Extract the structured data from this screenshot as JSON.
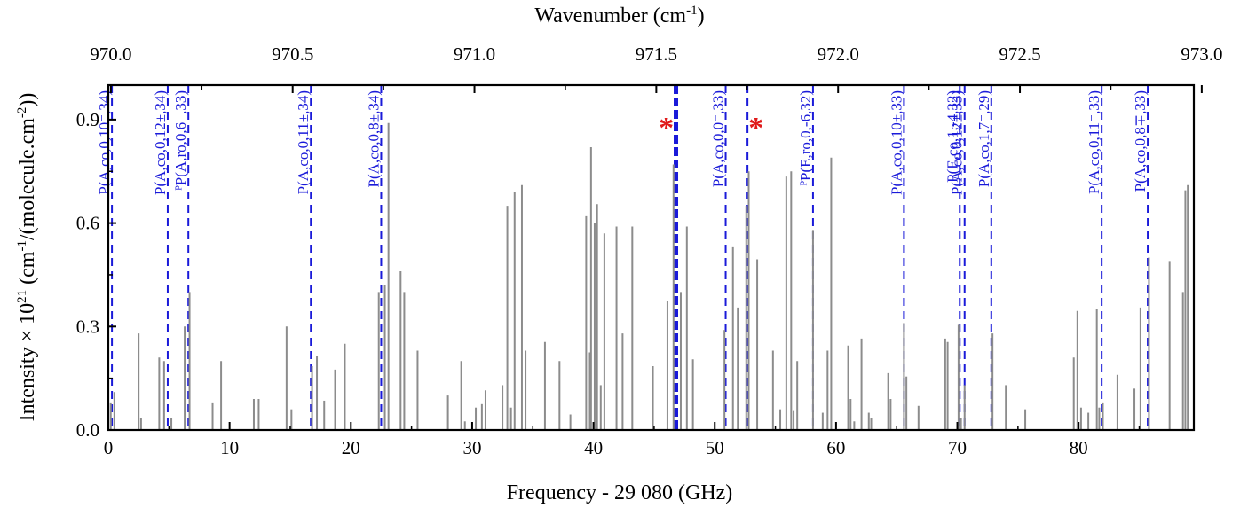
{
  "chart_data": {
    "type": "bar",
    "xlabel": "Frequency - 29 080 (GHz)",
    "ylabel": "Intensity × 10^21 (cm^-1/(molecule.cm^-2))",
    "top_xlabel": "Wavenumber (cm^-1)",
    "xlim": [
      0,
      89.5
    ],
    "ylim": [
      0,
      1.0
    ],
    "x_ticks": [
      0,
      10,
      20,
      30,
      40,
      50,
      60,
      70,
      80
    ],
    "x_tick_labels": [
      "0",
      "10",
      "20",
      "30",
      "40",
      "50",
      "60",
      "70",
      "80"
    ],
    "y_ticks": [
      0.0,
      0.3,
      0.6,
      0.9
    ],
    "y_tick_labels": [
      "0.0",
      "0.3",
      "0.6",
      "0.9"
    ],
    "top_ticks_cm": [
      970.0,
      970.5,
      971.0,
      971.5,
      972.0,
      972.5,
      973.0
    ],
    "top_tick_labels": [
      "970.0",
      "970.5",
      "971.0",
      "971.5",
      "972.0",
      "972.5",
      "973.0"
    ],
    "top_axis_zero_cm": 969.993,
    "top_axis_ghz_per_cm": 29.98,
    "bar_color": "#8c8c8c",
    "assignment_color": "#1a1ad9",
    "marker_color": "#e01b1b",
    "sticks": [
      {
        "x": 0.2,
        "y": 0.08
      },
      {
        "x": 0.5,
        "y": 0.11
      },
      {
        "x": 2.5,
        "y": 0.28
      },
      {
        "x": 2.7,
        "y": 0.035
      },
      {
        "x": 4.2,
        "y": 0.21
      },
      {
        "x": 4.6,
        "y": 0.2
      },
      {
        "x": 5.2,
        "y": 0.035
      },
      {
        "x": 6.3,
        "y": 0.3
      },
      {
        "x": 6.7,
        "y": 0.4
      },
      {
        "x": 8.6,
        "y": 0.08
      },
      {
        "x": 9.3,
        "y": 0.2
      },
      {
        "x": 12.0,
        "y": 0.09
      },
      {
        "x": 12.4,
        "y": 0.09
      },
      {
        "x": 14.7,
        "y": 0.3
      },
      {
        "x": 15.1,
        "y": 0.06
      },
      {
        "x": 16.8,
        "y": 0.185
      },
      {
        "x": 17.2,
        "y": 0.215
      },
      {
        "x": 17.8,
        "y": 0.085
      },
      {
        "x": 18.7,
        "y": 0.175
      },
      {
        "x": 19.5,
        "y": 0.25
      },
      {
        "x": 22.3,
        "y": 0.4
      },
      {
        "x": 22.8,
        "y": 0.42
      },
      {
        "x": 23.1,
        "y": 0.89
      },
      {
        "x": 24.1,
        "y": 0.46
      },
      {
        "x": 24.4,
        "y": 0.4
      },
      {
        "x": 25.5,
        "y": 0.23
      },
      {
        "x": 28.0,
        "y": 0.1
      },
      {
        "x": 29.1,
        "y": 0.2
      },
      {
        "x": 29.4,
        "y": 0.025
      },
      {
        "x": 30.3,
        "y": 0.065
      },
      {
        "x": 30.8,
        "y": 0.075
      },
      {
        "x": 31.1,
        "y": 0.115
      },
      {
        "x": 32.5,
        "y": 0.13
      },
      {
        "x": 32.9,
        "y": 0.65
      },
      {
        "x": 33.2,
        "y": 0.065
      },
      {
        "x": 33.5,
        "y": 0.69
      },
      {
        "x": 34.1,
        "y": 0.71
      },
      {
        "x": 34.4,
        "y": 0.23
      },
      {
        "x": 36.0,
        "y": 0.255
      },
      {
        "x": 37.2,
        "y": 0.2
      },
      {
        "x": 38.1,
        "y": 0.045
      },
      {
        "x": 39.4,
        "y": 0.62
      },
      {
        "x": 39.7,
        "y": 0.225
      },
      {
        "x": 39.8,
        "y": 0.82
      },
      {
        "x": 40.1,
        "y": 0.6
      },
      {
        "x": 40.3,
        "y": 0.655
      },
      {
        "x": 40.6,
        "y": 0.13
      },
      {
        "x": 40.9,
        "y": 0.57
      },
      {
        "x": 41.9,
        "y": 0.59
      },
      {
        "x": 42.4,
        "y": 0.28
      },
      {
        "x": 43.2,
        "y": 0.59
      },
      {
        "x": 44.9,
        "y": 0.185
      },
      {
        "x": 46.1,
        "y": 0.375
      },
      {
        "x": 46.6,
        "y": 0.77
      },
      {
        "x": 47.2,
        "y": 0.4
      },
      {
        "x": 47.7,
        "y": 0.59
      },
      {
        "x": 48.2,
        "y": 0.205
      },
      {
        "x": 50.8,
        "y": 0.29
      },
      {
        "x": 51.5,
        "y": 0.53
      },
      {
        "x": 51.9,
        "y": 0.355
      },
      {
        "x": 52.6,
        "y": 0.65
      },
      {
        "x": 52.8,
        "y": 0.75
      },
      {
        "x": 53.5,
        "y": 0.495
      },
      {
        "x": 54.8,
        "y": 0.23
      },
      {
        "x": 55.4,
        "y": 0.06
      },
      {
        "x": 55.9,
        "y": 0.735
      },
      {
        "x": 56.3,
        "y": 0.75
      },
      {
        "x": 56.5,
        "y": 0.055
      },
      {
        "x": 56.8,
        "y": 0.2
      },
      {
        "x": 58.1,
        "y": 0.58
      },
      {
        "x": 58.9,
        "y": 0.05
      },
      {
        "x": 59.3,
        "y": 0.23
      },
      {
        "x": 59.6,
        "y": 0.79
      },
      {
        "x": 61.0,
        "y": 0.245
      },
      {
        "x": 61.2,
        "y": 0.09
      },
      {
        "x": 61.5,
        "y": 0.025
      },
      {
        "x": 62.1,
        "y": 0.265
      },
      {
        "x": 62.7,
        "y": 0.05
      },
      {
        "x": 62.9,
        "y": 0.035
      },
      {
        "x": 64.3,
        "y": 0.165
      },
      {
        "x": 64.5,
        "y": 0.09
      },
      {
        "x": 65.6,
        "y": 0.31
      },
      {
        "x": 65.8,
        "y": 0.155
      },
      {
        "x": 66.8,
        "y": 0.07
      },
      {
        "x": 69.0,
        "y": 0.265
      },
      {
        "x": 69.2,
        "y": 0.255
      },
      {
        "x": 70.1,
        "y": 0.305
      },
      {
        "x": 70.3,
        "y": 0.035
      },
      {
        "x": 70.6,
        "y": 0.13
      },
      {
        "x": 72.9,
        "y": 0.28
      },
      {
        "x": 74.0,
        "y": 0.13
      },
      {
        "x": 75.6,
        "y": 0.06
      },
      {
        "x": 79.6,
        "y": 0.21
      },
      {
        "x": 79.9,
        "y": 0.345
      },
      {
        "x": 80.2,
        "y": 0.065
      },
      {
        "x": 80.8,
        "y": 0.05
      },
      {
        "x": 81.5,
        "y": 0.35
      },
      {
        "x": 81.7,
        "y": 0.065
      },
      {
        "x": 82.0,
        "y": 0.08
      },
      {
        "x": 83.2,
        "y": 0.16
      },
      {
        "x": 84.6,
        "y": 0.12
      },
      {
        "x": 85.1,
        "y": 0.355
      },
      {
        "x": 85.8,
        "y": 0.5
      },
      {
        "x": 87.5,
        "y": 0.49
      },
      {
        "x": 88.6,
        "y": 0.4
      },
      {
        "x": 88.8,
        "y": 0.695
      },
      {
        "x": 89.0,
        "y": 0.71
      }
    ],
    "assignments": [
      {
        "x": 0.3,
        "label": "P(A,co,0,10⁻,34)",
        "heavy": false
      },
      {
        "x": 4.9,
        "label": "P(A,co,0,12±,34)",
        "heavy": false
      },
      {
        "x": 6.6,
        "label": "ᴾP(A,ro,0,6⁻,33)",
        "heavy": false
      },
      {
        "x": 16.7,
        "label": "P(A,co,0,11±,34)",
        "heavy": false
      },
      {
        "x": 22.5,
        "label": "P(A,co,0,8±,34)",
        "heavy": false
      },
      {
        "x": 46.8,
        "label": "",
        "heavy": true
      },
      {
        "x": 50.9,
        "label": "P(A,co,0,0⁻,33)",
        "heavy": false
      },
      {
        "x": 52.7,
        "label": "",
        "heavy": false
      },
      {
        "x": 58.1,
        "label": "ᴾP(E,ro,0,-6,32)",
        "heavy": false
      },
      {
        "x": 65.6,
        "label": "P(A,co,0,10±,33)",
        "heavy": false
      },
      {
        "x": 70.2,
        "label": "P(E,co,1,-4,32)",
        "heavy": false
      },
      {
        "x": 70.6,
        "label": "P(A,co,0,12±,33)",
        "heavy": false
      },
      {
        "x": 72.8,
        "label": "P(A,co,1,7⁻,29)",
        "heavy": false
      },
      {
        "x": 81.9,
        "label": "P(A,co,0,11⁻,33)",
        "heavy": false
      },
      {
        "x": 85.7,
        "label": "P(A,co,0,8∓,33)",
        "heavy": false
      }
    ],
    "markers": [
      {
        "x": 46.0,
        "y": 0.9,
        "symbol": "*"
      },
      {
        "x": 53.4,
        "y": 0.9,
        "symbol": "*"
      }
    ]
  }
}
